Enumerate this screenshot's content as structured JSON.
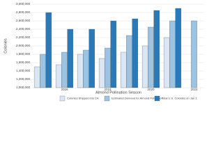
{
  "chart_data": {
    "type": "bar",
    "x_label": "Almond Pollination Season",
    "y_label": "Colonies",
    "categories": [
      null,
      "2016",
      null,
      "2018",
      null,
      "2020",
      null,
      "2022"
    ],
    "series": [
      {
        "name": "Colonies Shipped into CA",
        "color": "#dbe6f4",
        "values": [
          1500000,
          1550000,
          1800000,
          1700000,
          1850000,
          2000000,
          2200000,
          null
        ]
      },
      {
        "name": "Estimated Demand for Almond Pollination",
        "color": "#9cc4e2",
        "values": [
          1800000,
          1850000,
          1900000,
          1950000,
          2250000,
          2450000,
          2600000,
          2600000
        ]
      },
      {
        "name": "Total U.S. Colonies on Jan 1",
        "color": "#2a7aba",
        "values": [
          2800000,
          2400000,
          2400000,
          2600000,
          2650000,
          2850000,
          2900000,
          null
        ]
      }
    ],
    "ylim": [
      1000000,
      3000000
    ],
    "yticks": [
      {
        "value": 1000000,
        "label": "1,000,000"
      },
      {
        "value": 1200000,
        "label": "1,200,000"
      },
      {
        "value": 1400000,
        "label": "1,400,000"
      },
      {
        "value": 1600000,
        "label": "1,600,000"
      },
      {
        "value": 1800000,
        "label": "1,800,000"
      },
      {
        "value": 2000000,
        "label": "2,000,000"
      },
      {
        "value": 2200000,
        "label": "2,200,000"
      },
      {
        "value": 2400000,
        "label": "2,400,000"
      },
      {
        "value": 2600000,
        "label": "2,600,000"
      },
      {
        "value": 2800000,
        "label": "2,800,000"
      },
      {
        "value": 3000000,
        "label": "3,000,000"
      }
    ],
    "grid": true
  }
}
